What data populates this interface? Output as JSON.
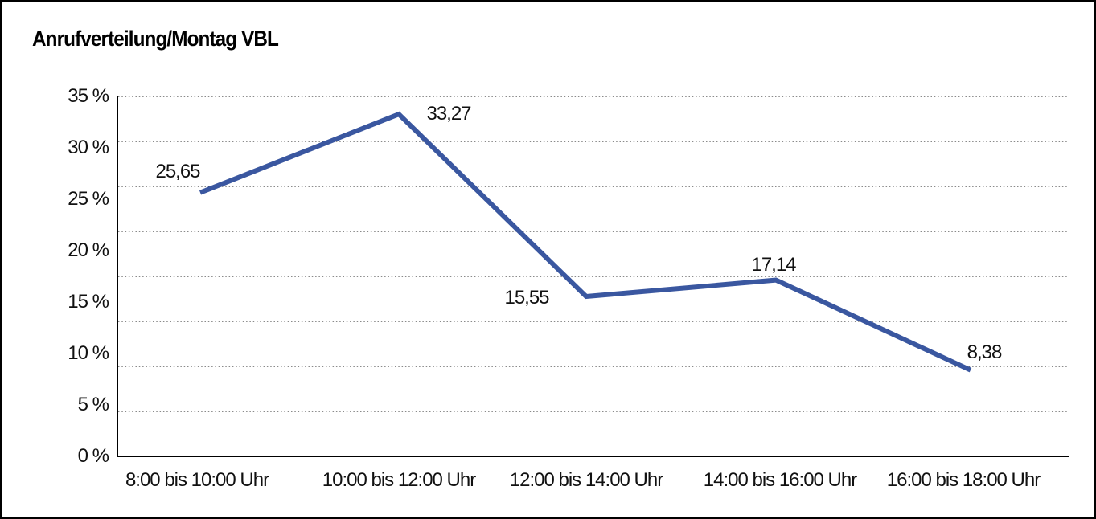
{
  "window": {
    "background_color": "#ffffff",
    "border_color": "#000000"
  },
  "chart_data": {
    "type": "line",
    "title": "Anrufverteilung/Montag VBL",
    "categories": [
      "8:00 bis 10:00 Uhr",
      "10:00 bis 12:00 Uhr",
      "12:00 bis 14:00 Uhr",
      "14:00 bis 16:00 Uhr",
      "16:00 bis 18:00 Uhr"
    ],
    "series": [
      {
        "values": [
          25.65,
          33.27,
          15.55,
          17.14,
          8.38
        ],
        "point_labels": [
          "25,65",
          "33,27",
          "15,55",
          "17,14",
          "8,38"
        ],
        "color": "#3A57A0"
      }
    ],
    "y_axis": {
      "min": 0,
      "max": 35,
      "tick_step": 5,
      "unit": "%",
      "tick_labels": [
        "35 %",
        "30 %",
        "25 %",
        "20 %",
        "15 %",
        "10 %",
        "5 %",
        "0 %"
      ]
    },
    "grid": {
      "horizontal": "dotted",
      "intervals": 8,
      "color": "#444444"
    },
    "axis_color": "#000000",
    "legend": "none"
  }
}
